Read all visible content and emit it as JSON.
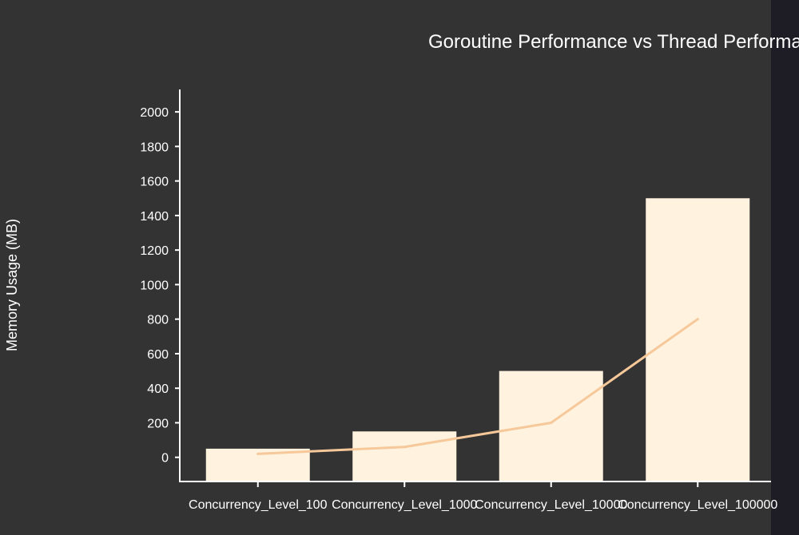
{
  "chart_data": {
    "type": "bar",
    "title": "Goroutine Performance vs Thread Performance",
    "xlabel": "",
    "ylabel": "Memory Usage (MB)",
    "categories": [
      "Concurrency_Level_100",
      "Concurrency_Level_1000",
      "Concurrency_Level_10000",
      "Concurrency_Level_100000"
    ],
    "series": [
      {
        "type": "bar",
        "values": [
          50,
          150,
          500,
          1500
        ],
        "color": "#fff3df"
      },
      {
        "type": "line",
        "values": [
          20,
          60,
          200,
          800
        ],
        "color": "#f6c89a"
      }
    ],
    "yticks": [
      0,
      200,
      400,
      600,
      800,
      1000,
      1200,
      1400,
      1600,
      1800,
      2000
    ],
    "ylim": [
      -140,
      2130
    ],
    "grid": false,
    "background": "#333333",
    "text_color": "#ffffff"
  }
}
